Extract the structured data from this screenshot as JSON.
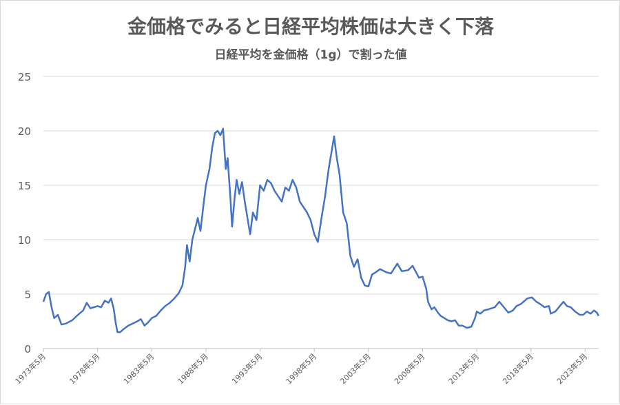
{
  "chart_data": {
    "type": "line",
    "title": "金価格でみると日経平均株価は大きく下落",
    "subtitle": "日経平均を金価格（1g）で割った値",
    "xlabel": "",
    "ylabel": "",
    "ylim": [
      0,
      25
    ],
    "yticks": [
      "0",
      "5",
      "10",
      "15",
      "20",
      "25"
    ],
    "xticks": [
      "1973年5月",
      "1978年5月",
      "1983年5月",
      "1988年5月",
      "1993年5月",
      "1998年5月",
      "2003年5月",
      "2008年5月",
      "2013年5月",
      "2018年5月",
      "2023年5月"
    ],
    "grid": "horizontal",
    "line_color": "#4472c4",
    "series": [
      {
        "points": [
          [
            "1973-05",
            4.3
          ],
          [
            "1973-08",
            5.0
          ],
          [
            "1973-11",
            5.2
          ],
          [
            "1974-02",
            3.8
          ],
          [
            "1974-05",
            2.8
          ],
          [
            "1974-09",
            3.1
          ],
          [
            "1975-01",
            2.2
          ],
          [
            "1975-06",
            2.3
          ],
          [
            "1976-01",
            2.6
          ],
          [
            "1976-06",
            3.0
          ],
          [
            "1977-01",
            3.5
          ],
          [
            "1977-05",
            4.2
          ],
          [
            "1977-09",
            3.7
          ],
          [
            "1978-01",
            3.8
          ],
          [
            "1978-05",
            3.9
          ],
          [
            "1978-09",
            3.8
          ],
          [
            "1979-01",
            4.4
          ],
          [
            "1979-05",
            4.2
          ],
          [
            "1979-08",
            4.6
          ],
          [
            "1979-11",
            3.6
          ],
          [
            "1980-01",
            2.4
          ],
          [
            "1980-03",
            1.5
          ],
          [
            "1980-06",
            1.5
          ],
          [
            "1980-10",
            1.8
          ],
          [
            "1981-03",
            2.1
          ],
          [
            "1981-08",
            2.3
          ],
          [
            "1982-01",
            2.5
          ],
          [
            "1982-05",
            2.7
          ],
          [
            "1982-09",
            2.1
          ],
          [
            "1983-01",
            2.4
          ],
          [
            "1983-05",
            2.8
          ],
          [
            "1983-10",
            3.0
          ],
          [
            "1984-03",
            3.5
          ],
          [
            "1984-08",
            3.9
          ],
          [
            "1985-01",
            4.2
          ],
          [
            "1985-06",
            4.6
          ],
          [
            "1985-11",
            5.1
          ],
          [
            "1986-03",
            5.8
          ],
          [
            "1986-06",
            7.5
          ],
          [
            "1986-08",
            9.5
          ],
          [
            "1986-11",
            8.0
          ],
          [
            "1987-02",
            10.0
          ],
          [
            "1987-05",
            11.0
          ],
          [
            "1987-08",
            12.0
          ],
          [
            "1987-11",
            10.8
          ],
          [
            "1988-02",
            13.0
          ],
          [
            "1988-05",
            15.0
          ],
          [
            "1988-09",
            16.5
          ],
          [
            "1988-12",
            18.5
          ],
          [
            "1989-03",
            19.8
          ],
          [
            "1989-06",
            20.0
          ],
          [
            "1989-09",
            19.6
          ],
          [
            "1989-12",
            20.2
          ],
          [
            "1990-03",
            16.5
          ],
          [
            "1990-05",
            17.5
          ],
          [
            "1990-08",
            14.0
          ],
          [
            "1990-10",
            11.2
          ],
          [
            "1991-01",
            14.0
          ],
          [
            "1991-03",
            15.5
          ],
          [
            "1991-06",
            14.2
          ],
          [
            "1991-09",
            15.3
          ],
          [
            "1991-12",
            13.5
          ],
          [
            "1992-03",
            12.0
          ],
          [
            "1992-06",
            10.5
          ],
          [
            "1992-09",
            12.5
          ],
          [
            "1993-01",
            11.8
          ],
          [
            "1993-05",
            15.0
          ],
          [
            "1993-09",
            14.5
          ],
          [
            "1994-01",
            15.5
          ],
          [
            "1994-05",
            15.2
          ],
          [
            "1994-09",
            14.5
          ],
          [
            "1995-01",
            14.0
          ],
          [
            "1995-05",
            13.5
          ],
          [
            "1995-09",
            14.8
          ],
          [
            "1996-01",
            14.5
          ],
          [
            "1996-05",
            15.5
          ],
          [
            "1996-09",
            14.8
          ],
          [
            "1997-01",
            13.5
          ],
          [
            "1997-05",
            13.0
          ],
          [
            "1997-09",
            12.5
          ],
          [
            "1998-01",
            11.8
          ],
          [
            "1998-05",
            10.5
          ],
          [
            "1998-09",
            9.8
          ],
          [
            "1999-01",
            12.0
          ],
          [
            "1999-05",
            14.0
          ],
          [
            "1999-09",
            16.5
          ],
          [
            "2000-01",
            18.5
          ],
          [
            "2000-03",
            19.5
          ],
          [
            "2000-06",
            17.5
          ],
          [
            "2000-09",
            16.0
          ],
          [
            "2001-01",
            12.5
          ],
          [
            "2001-05",
            11.5
          ],
          [
            "2001-09",
            8.5
          ],
          [
            "2002-01",
            7.5
          ],
          [
            "2002-05",
            8.2
          ],
          [
            "2002-09",
            6.5
          ],
          [
            "2003-01",
            5.8
          ],
          [
            "2003-05",
            5.7
          ],
          [
            "2003-09",
            6.8
          ],
          [
            "2004-01",
            7.0
          ],
          [
            "2004-06",
            7.3
          ],
          [
            "2005-01",
            7.0
          ],
          [
            "2005-06",
            6.9
          ],
          [
            "2006-01",
            7.8
          ],
          [
            "2006-06",
            7.1
          ],
          [
            "2007-01",
            7.2
          ],
          [
            "2007-06",
            7.6
          ],
          [
            "2008-01",
            6.5
          ],
          [
            "2008-05",
            6.6
          ],
          [
            "2008-09",
            5.5
          ],
          [
            "2008-11",
            4.3
          ],
          [
            "2009-03",
            3.6
          ],
          [
            "2009-06",
            3.8
          ],
          [
            "2009-10",
            3.3
          ],
          [
            "2010-01",
            3.0
          ],
          [
            "2010-05",
            2.8
          ],
          [
            "2010-09",
            2.6
          ],
          [
            "2011-01",
            2.5
          ],
          [
            "2011-05",
            2.6
          ],
          [
            "2011-09",
            2.1
          ],
          [
            "2012-01",
            2.1
          ],
          [
            "2012-06",
            1.9
          ],
          [
            "2012-11",
            2.0
          ],
          [
            "2013-03",
            2.8
          ],
          [
            "2013-05",
            3.4
          ],
          [
            "2013-09",
            3.2
          ],
          [
            "2014-01",
            3.5
          ],
          [
            "2014-06",
            3.6
          ],
          [
            "2015-01",
            3.8
          ],
          [
            "2015-06",
            4.3
          ],
          [
            "2015-11",
            3.8
          ],
          [
            "2016-04",
            3.3
          ],
          [
            "2016-09",
            3.5
          ],
          [
            "2017-01",
            3.9
          ],
          [
            "2017-06",
            4.1
          ],
          [
            "2018-01",
            4.6
          ],
          [
            "2018-06",
            4.7
          ],
          [
            "2018-11",
            4.3
          ],
          [
            "2019-03",
            4.1
          ],
          [
            "2019-08",
            3.8
          ],
          [
            "2020-01",
            3.9
          ],
          [
            "2020-03",
            3.2
          ],
          [
            "2020-08",
            3.4
          ],
          [
            "2021-01",
            3.9
          ],
          [
            "2021-05",
            4.3
          ],
          [
            "2021-09",
            3.9
          ],
          [
            "2022-01",
            3.8
          ],
          [
            "2022-06",
            3.4
          ],
          [
            "2022-11",
            3.1
          ],
          [
            "2023-03",
            3.1
          ],
          [
            "2023-07",
            3.4
          ],
          [
            "2023-11",
            3.2
          ],
          [
            "2024-03",
            3.5
          ],
          [
            "2024-06",
            3.3
          ],
          [
            "2024-08",
            3.0
          ]
        ]
      }
    ]
  }
}
